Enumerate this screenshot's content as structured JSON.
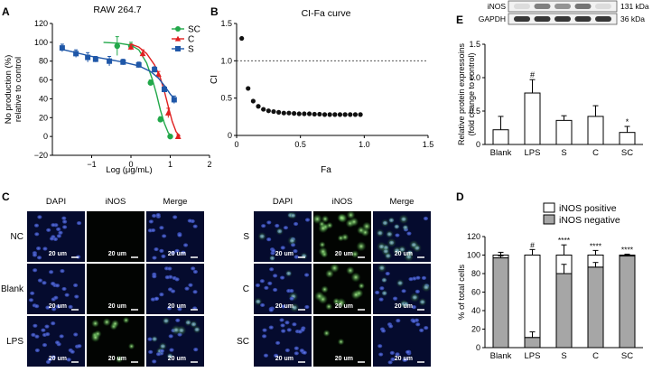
{
  "panels": {
    "A": "A",
    "B": "B",
    "C": "C",
    "D": "D",
    "E": "E"
  },
  "chart_data": [
    {
      "id": "A",
      "type": "line",
      "title": "RAW 264.7",
      "xlabel": "Log (μg/mL)",
      "ylabel": "No production (%) relative to control",
      "ylabel_lines": [
        "No production (%)",
        "relative to control"
      ],
      "xlim": [
        -2,
        2
      ],
      "ylim": [
        -20,
        120
      ],
      "xticks": [
        -1,
        0,
        1,
        2
      ],
      "xtick_labels": [
        "−1",
        "0",
        "1",
        "2"
      ],
      "yticks": [
        -20,
        0,
        20,
        40,
        60,
        80,
        100,
        120
      ],
      "ytick_labels": [
        "−20",
        "0",
        "20",
        "40",
        "60",
        "80",
        "100",
        "120"
      ],
      "legend_position": "top-right",
      "series": [
        {
          "name": "SC",
          "color": "#22a84a",
          "marker": "circle",
          "x": [
            -0.35,
            0.0,
            0.5,
            0.75,
            1.0
          ],
          "y": [
            96,
            96,
            57,
            18,
            0
          ],
          "err": [
            10,
            4,
            3,
            3,
            2
          ],
          "curve_x": [
            -0.7,
            -0.3,
            0,
            0.2,
            0.4,
            0.55,
            0.65,
            0.75,
            0.85,
            0.95,
            1.05
          ],
          "curve_y": [
            100,
            99,
            97,
            92,
            78,
            60,
            45,
            28,
            14,
            4,
            -1
          ]
        },
        {
          "name": "C",
          "color": "#e02020",
          "marker": "triangle",
          "x": [
            0.0,
            0.3,
            0.7,
            0.95,
            1.2
          ],
          "y": [
            95,
            88,
            66,
            25,
            0
          ],
          "err": [
            3,
            4,
            3,
            5,
            2
          ],
          "curve_x": [
            0,
            0.2,
            0.4,
            0.6,
            0.75,
            0.85,
            0.95,
            1.05,
            1.15,
            1.25
          ],
          "curve_y": [
            98,
            95,
            88,
            76,
            62,
            48,
            32,
            16,
            5,
            0
          ]
        },
        {
          "name": "S",
          "color": "#1f57a8",
          "marker": "square",
          "x": [
            -1.75,
            -1.4,
            -1.1,
            -0.9,
            -0.55,
            -0.2,
            0.2,
            0.6,
            0.85,
            1.1
          ],
          "y": [
            94,
            88,
            84,
            82,
            80,
            79,
            76,
            71,
            50,
            39
          ],
          "err": [
            4,
            4,
            5,
            3,
            5,
            3,
            3,
            3,
            3,
            4
          ],
          "curve_x": [
            -1.8,
            -1.4,
            -1.0,
            -0.6,
            -0.2,
            0.2,
            0.5,
            0.7,
            0.85,
            1.0,
            1.15
          ],
          "curve_y": [
            93,
            89,
            85,
            82,
            79,
            75,
            69,
            62,
            54,
            45,
            38
          ]
        }
      ]
    },
    {
      "id": "B",
      "type": "scatter",
      "title": "CI-Fa curve",
      "xlabel": "Fa",
      "ylabel": "CI",
      "xlim": [
        0,
        1.5
      ],
      "ylim": [
        0,
        1.5
      ],
      "xticks": [
        0,
        0.5,
        1.0,
        1.5
      ],
      "xtick_labels": [
        "0",
        "0.5",
        "1.0",
        "1.5"
      ],
      "yticks": [
        0,
        0.5,
        1.0,
        1.5
      ],
      "ytick_labels": [
        "0",
        "0.5",
        "1.0",
        "1.5"
      ],
      "reference_line_y": 1.0,
      "x": [
        0.04,
        0.09,
        0.13,
        0.17,
        0.21,
        0.25,
        0.29,
        0.33,
        0.37,
        0.41,
        0.45,
        0.49,
        0.53,
        0.57,
        0.61,
        0.65,
        0.69,
        0.73,
        0.77,
        0.81,
        0.85,
        0.89,
        0.93,
        0.97
      ],
      "y": [
        1.3,
        0.63,
        0.46,
        0.39,
        0.35,
        0.33,
        0.32,
        0.31,
        0.3,
        0.3,
        0.295,
        0.29,
        0.29,
        0.29,
        0.285,
        0.285,
        0.28,
        0.28,
        0.28,
        0.28,
        0.28,
        0.28,
        0.28,
        0.28
      ]
    },
    {
      "id": "E",
      "type": "bar",
      "ylabel_lines": [
        "Relative protein expressoins",
        "(fold change to control)"
      ],
      "categories": [
        "Blank",
        "LPS",
        "S",
        "C",
        "SC"
      ],
      "values": [
        0.22,
        0.77,
        0.36,
        0.42,
        0.18
      ],
      "err": [
        0.2,
        0.2,
        0.07,
        0.16,
        0.09
      ],
      "sig": [
        "",
        "#",
        "",
        "",
        "*"
      ],
      "ylim": [
        0,
        1.5
      ],
      "yticks": [
        0,
        0.5,
        1.0,
        1.5
      ],
      "ytick_labels": [
        "0",
        "0.5",
        "1.0",
        "1.5"
      ],
      "blot": {
        "rows": [
          {
            "label": "iNOS",
            "kda": "131 kDa",
            "bands": [
              0.1,
              0.55,
              0.45,
              0.6,
              0.1
            ]
          },
          {
            "label": "GAPDH",
            "kda": "36 kDa",
            "bands": [
              0.9,
              0.9,
              0.9,
              0.9,
              0.9
            ]
          }
        ]
      }
    },
    {
      "id": "D",
      "type": "bar",
      "stacked": true,
      "ylabel": "% of total cells",
      "categories": [
        "Blank",
        "LPS",
        "S",
        "C",
        "SC"
      ],
      "series": [
        {
          "name": "iNOS positive",
          "color": "#ffffff",
          "values": [
            3,
            89,
            20,
            13,
            1
          ]
        },
        {
          "name": "iNOS negative",
          "color": "#a6a6a6",
          "values": [
            97,
            11,
            80,
            87,
            99
          ]
        }
      ],
      "neg_err": [
        2,
        6,
        10,
        5,
        1
      ],
      "top_err": [
        3,
        6,
        11,
        5,
        1
      ],
      "sig": [
        "",
        "#",
        "****",
        "****",
        "****"
      ],
      "ylim": [
        0,
        120
      ],
      "yticks": [
        0,
        20,
        40,
        60,
        80,
        100,
        120
      ],
      "ytick_labels": [
        "0",
        "20",
        "40",
        "60",
        "80",
        "100",
        "120"
      ],
      "legend_position": "top-right"
    }
  ],
  "microscopy": {
    "left": {
      "columns": [
        "DAPI",
        "iNOS",
        "Merge"
      ],
      "rows": [
        "NC",
        "Blank",
        "LPS"
      ],
      "green": [
        [
          0,
          0,
          0
        ],
        [
          0,
          0,
          0
        ],
        [
          0,
          0.55,
          0.55
        ]
      ]
    },
    "right": {
      "columns": [
        "DAPI",
        "iNOS",
        "Merge"
      ],
      "rows": [
        "S",
        "C",
        "SC"
      ],
      "green": [
        [
          0.2,
          0.85,
          0.8
        ],
        [
          0.1,
          0.6,
          0.55
        ],
        [
          0,
          0.1,
          0.1
        ]
      ]
    },
    "scale_label": "20 um"
  }
}
